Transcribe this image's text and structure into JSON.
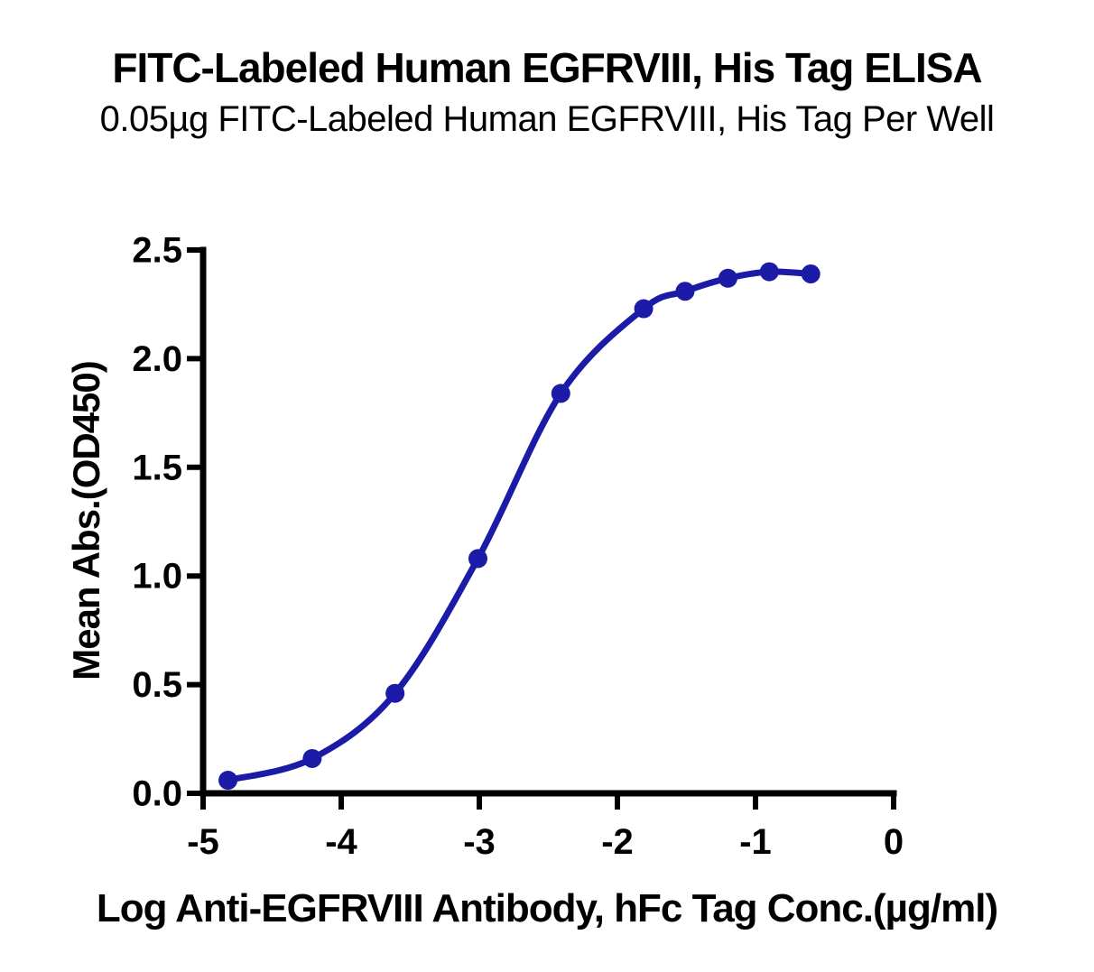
{
  "page": {
    "background_color": "#ffffff",
    "text_color": "#000000"
  },
  "chart_data": {
    "type": "line",
    "title": "FITC-Labeled Human EGFRVIII, His Tag ELISA",
    "subtitle": "0.05µg FITC-Labeled Human EGFRVIII, His Tag Per Well",
    "xlabel": "Log Anti-EGFRVIII Antibody, hFc Tag Conc.(µg/ml)",
    "ylabel": "Mean Abs.(OD450)",
    "xlim": [
      -5,
      0
    ],
    "ylim": [
      0,
      2.5
    ],
    "x_ticks": [
      -5,
      -4,
      -3,
      -2,
      -1,
      0
    ],
    "x_tick_labels": [
      "-5",
      "-4",
      "-3",
      "-2",
      "-1",
      "0"
    ],
    "y_ticks": [
      0,
      0.5,
      1,
      1.5,
      2,
      2.5
    ],
    "y_tick_labels": [
      "0.0",
      "0.5",
      "1.0",
      "1.5",
      "2.0",
      "2.5"
    ],
    "grid": false,
    "legend": "none",
    "axis_color": "#000000",
    "series": [
      {
        "name": "FITC-Labeled Human EGFRVIII, His Tag",
        "color": "#1B1BA8",
        "marker": "circle",
        "curve": "sigmoid-fit",
        "points": [
          {
            "x": -4.82,
            "y": 0.06
          },
          {
            "x": -4.21,
            "y": 0.16
          },
          {
            "x": -3.61,
            "y": 0.46
          },
          {
            "x": -3.01,
            "y": 1.08
          },
          {
            "x": -2.41,
            "y": 1.84
          },
          {
            "x": -1.81,
            "y": 2.23
          },
          {
            "x": -1.51,
            "y": 2.31
          },
          {
            "x": -1.2,
            "y": 2.37
          },
          {
            "x": -0.9,
            "y": 2.4
          },
          {
            "x": -0.6,
            "y": 2.39
          }
        ]
      }
    ]
  }
}
